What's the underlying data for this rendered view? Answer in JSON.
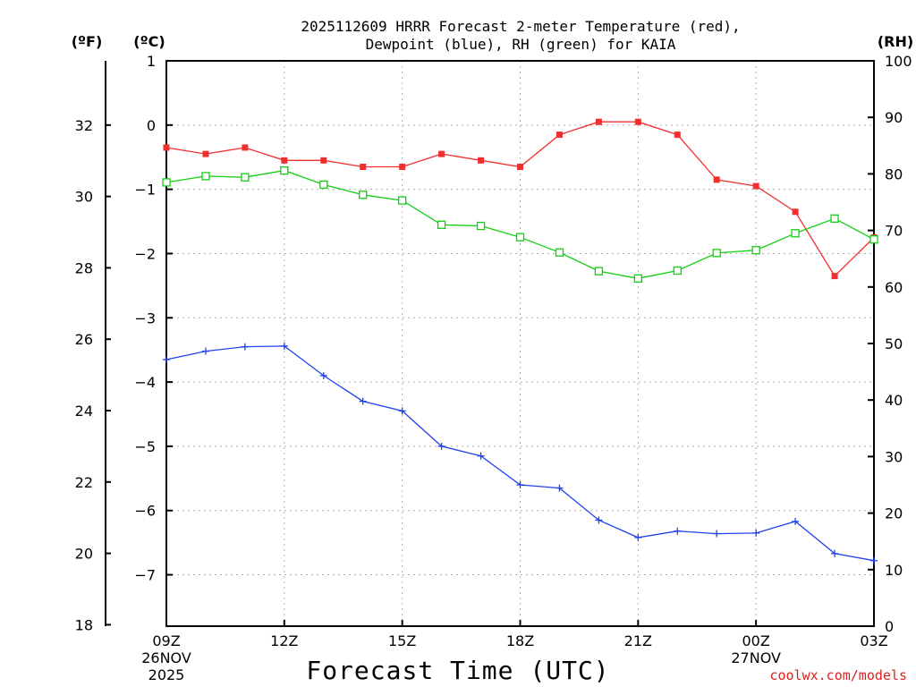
{
  "colors": {
    "temperature": "#f03030",
    "dewpoint": "#2040ee",
    "rh": "#10d010",
    "grid": "#b0b0b0",
    "credit": "#e02020"
  },
  "chart_data": {
    "type": "line",
    "title_line1": "2025112609 HRRR Forecast 2-meter Temperature (red),",
    "title_line2": "Dewpoint (blue), RH (green) for KAIA",
    "xlabel": "Forecast Time (UTC)",
    "credit": "coolwx.com/models",
    "unit_f": "(ºF)",
    "unit_c": "(ºC)",
    "unit_rh": "(RH)",
    "x_hours": [
      0,
      1,
      2,
      3,
      4,
      5,
      6,
      7,
      8,
      9,
      10,
      11,
      12,
      13,
      14,
      15,
      16,
      17,
      18
    ],
    "x_ticks": [
      {
        "hour": 0,
        "label": "09Z",
        "sub1": "26NOV",
        "sub2": "2025"
      },
      {
        "hour": 3,
        "label": "12Z",
        "sub1": "",
        "sub2": ""
      },
      {
        "hour": 6,
        "label": "15Z",
        "sub1": "",
        "sub2": ""
      },
      {
        "hour": 9,
        "label": "18Z",
        "sub1": "",
        "sub2": ""
      },
      {
        "hour": 12,
        "label": "21Z",
        "sub1": "",
        "sub2": ""
      },
      {
        "hour": 15,
        "label": "00Z",
        "sub1": "27NOV",
        "sub2": ""
      },
      {
        "hour": 18,
        "label": "03Z",
        "sub1": "",
        "sub2": ""
      }
    ],
    "x_range": [
      0,
      18
    ],
    "c_range": [
      -7.8,
      1.0
    ],
    "c_ticks": [
      "1",
      "0",
      "-1",
      "-2",
      "-3",
      "-4",
      "-5",
      "-6",
      "-7"
    ],
    "f_ticks": [
      "32",
      "30",
      "28",
      "26",
      "24",
      "22",
      "20",
      "18"
    ],
    "rh_range": [
      0,
      100
    ],
    "rh_ticks": [
      "0",
      "10",
      "20",
      "30",
      "40",
      "50",
      "60",
      "70",
      "80",
      "90",
      "100"
    ],
    "series": [
      {
        "name": "Temperature",
        "unit": "C",
        "marker": "filled-square",
        "values": [
          -0.35,
          -0.45,
          -0.35,
          -0.55,
          -0.55,
          -0.65,
          -0.65,
          -0.45,
          -0.55,
          -0.65,
          -0.15,
          0.05,
          0.05,
          -0.15,
          -0.85,
          -0.95,
          -1.35,
          -2.35,
          -1.75
        ]
      },
      {
        "name": "Dewpoint",
        "unit": "C",
        "marker": "plus",
        "values": [
          -3.65,
          -3.52,
          -3.45,
          -3.44,
          -3.9,
          -4.3,
          -4.45,
          -5.0,
          -5.15,
          -5.6,
          -5.65,
          -6.15,
          -6.42,
          -6.32,
          -6.36,
          -6.35,
          -6.17,
          -6.67,
          -6.78
        ]
      },
      {
        "name": "RH",
        "unit": "%",
        "marker": "open-square",
        "values": [
          78.5,
          79.6,
          79.4,
          80.6,
          78.1,
          76.3,
          75.3,
          71.0,
          70.8,
          68.8,
          66.1,
          62.8,
          61.5,
          62.9,
          66.0,
          66.5,
          69.5,
          72.1,
          68.4
        ]
      }
    ]
  }
}
